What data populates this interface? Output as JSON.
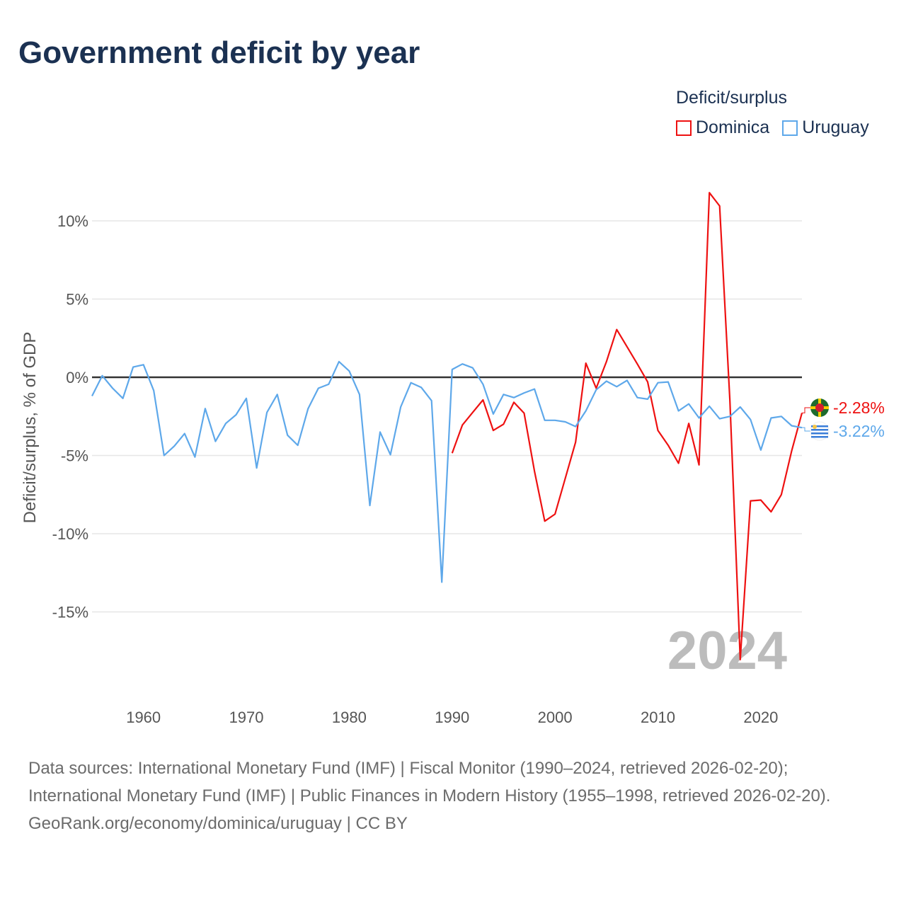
{
  "title": "Government deficit by year",
  "legend": {
    "title": "Deficit/surplus",
    "items": [
      {
        "name": "Dominica",
        "color": "#ee1111"
      },
      {
        "name": "Uruguay",
        "color": "#5ea8ea"
      }
    ]
  },
  "footer": {
    "sources": "Data sources: International Monetary Fund (IMF) | Fiscal Monitor (1990–2024, retrieved 2026-02-20); International Monetary Fund (IMF) | Public Finances in Modern History (1955–1998, retrieved 2026-02-20).",
    "credit": "GeoRank.org/economy/dominica/uruguay | CC BY"
  },
  "chart_data": {
    "type": "line",
    "title": "Government deficit by year",
    "ylabel": "Deficit/surplus, % of GDP",
    "xlabel": "",
    "xlim": [
      1955,
      2024
    ],
    "ylim": [
      -19,
      13
    ],
    "year_watermark": "2024",
    "x_ticks": [
      1960,
      1970,
      1980,
      1990,
      2000,
      2010,
      2020
    ],
    "x_tick_labels": [
      "1960",
      "1970",
      "1980",
      "1990",
      "2000",
      "2010",
      "2020"
    ],
    "y_ticks": [
      10,
      5,
      0,
      -5,
      -10,
      -15
    ],
    "y_tick_labels": [
      "10%",
      "5%",
      "0%",
      "-5%",
      "-10%",
      "-15%"
    ],
    "grid": true,
    "legend_position": "top-right",
    "series": [
      {
        "name": "Dominica",
        "color": "#ee1111",
        "start_year": 1990,
        "end_label": "-2.28%",
        "values": [
          -4.85,
          -3.05,
          -2.25,
          -1.45,
          -3.4,
          -3.0,
          -1.6,
          -2.3,
          -6.0,
          -9.2,
          -8.75,
          -6.45,
          -4.15,
          0.9,
          -0.7,
          1.0,
          3.05,
          1.95,
          0.85,
          -0.3,
          -3.4,
          -4.35,
          -5.5,
          -2.95,
          -5.6,
          11.8,
          10.95,
          -1.5,
          -18.05,
          -7.9,
          -7.85,
          -8.6,
          -7.5,
          -4.7,
          -2.28
        ]
      },
      {
        "name": "Uruguay",
        "color": "#5ea8ea",
        "start_year": 1955,
        "end_label": "-3.22%",
        "values": [
          -1.2,
          0.1,
          -0.7,
          -1.35,
          0.65,
          0.8,
          -0.85,
          -5.0,
          -4.4,
          -3.6,
          -5.1,
          -2.0,
          -4.1,
          -2.95,
          -2.4,
          -1.35,
          -5.8,
          -2.25,
          -1.1,
          -3.7,
          -4.35,
          -2.0,
          -0.7,
          -0.45,
          1.0,
          0.4,
          -1.1,
          -8.2,
          -3.5,
          -4.95,
          -1.9,
          -0.35,
          -0.65,
          -1.5,
          -13.1,
          0.5,
          0.85,
          0.6,
          -0.45,
          -2.35,
          -1.1,
          -1.3,
          -1.0,
          -0.75,
          -2.75,
          -2.75,
          -2.85,
          -3.15,
          -2.15,
          -0.8,
          -0.25,
          -0.6,
          -0.2,
          -1.3,
          -1.4,
          -0.35,
          -0.3,
          -2.15,
          -1.7,
          -2.6,
          -1.85,
          -2.65,
          -2.5,
          -1.9,
          -2.7,
          -4.65,
          -2.6,
          -2.5,
          -3.1,
          -3.22
        ]
      }
    ]
  }
}
